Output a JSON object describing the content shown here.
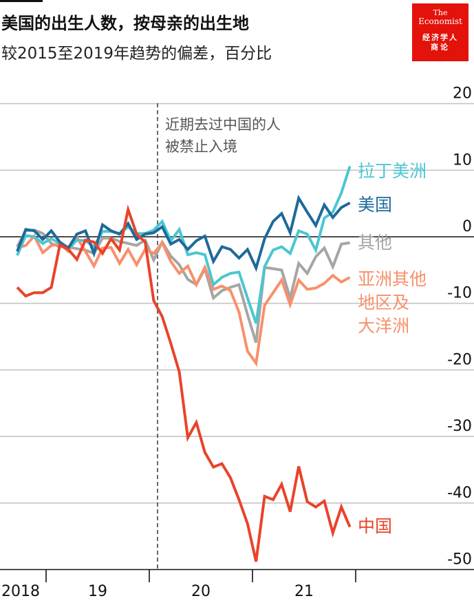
{
  "header": {
    "title": "美国的出生人数，按母亲的出生地",
    "subtitle": "较2015至2019年趋势的偏差，百分比"
  },
  "logo": {
    "line1": "The",
    "line2": "Economist",
    "line3": "经济学人",
    "line4": "商论",
    "color": "#e3120b"
  },
  "chart_data": {
    "type": "line",
    "title": "美国的出生人数，按母亲的出生地",
    "subtitle": "较2015至2019年趋势的偏差，百分比",
    "ylim": [
      -50,
      20
    ],
    "yticks": [
      "20",
      "10",
      "0",
      "-10",
      "-20",
      "-30",
      "-40",
      "-50"
    ],
    "ytick_values": [
      20,
      10,
      0,
      -10,
      -20,
      -30,
      -40,
      -50
    ],
    "xtick_labels": [
      "2018",
      "19",
      "20",
      "21"
    ],
    "grid": true,
    "annotation": {
      "line1": "近期去过中国的人",
      "line2": "被禁止入境",
      "at": "2020-01"
    },
    "x": [
      "2018-09",
      "2018-10",
      "2018-11",
      "2018-12",
      "2019-01",
      "2019-02",
      "2019-03",
      "2019-04",
      "2019-05",
      "2019-06",
      "2019-07",
      "2019-08",
      "2019-09",
      "2019-10",
      "2019-11",
      "2019-12",
      "2020-01",
      "2020-02",
      "2020-03",
      "2020-04",
      "2020-05",
      "2020-06",
      "2020-07",
      "2020-08",
      "2020-09",
      "2020-10",
      "2020-11",
      "2020-12",
      "2021-01",
      "2021-02",
      "2021-03",
      "2021-04",
      "2021-05",
      "2021-06",
      "2021-07",
      "2021-08",
      "2021-09",
      "2021-10",
      "2021-11",
      "2021-12"
    ],
    "series": [
      {
        "name": "其他",
        "color": "#a5a5a2",
        "values": [
          -1.5,
          0.9,
          1.0,
          0.5,
          -1.0,
          -1.5,
          -1.5,
          -1.8,
          -2.0,
          -2.5,
          -0.2,
          -0.2,
          -0.7,
          -1.0,
          -1.3,
          -0.5,
          -3.5,
          -0.8,
          -2.9,
          -4.2,
          -6.4,
          -7.2,
          -4.8,
          -9.2,
          -8.1,
          -7.6,
          -7.2,
          -11.7,
          -15.9,
          -4.6,
          -4.8,
          -5.0,
          -9.2,
          -4.0,
          -5.5,
          -3.0,
          -1.7,
          -4.5,
          -1.1,
          -0.9
        ]
      },
      {
        "name": "亚洲其他地区及大洋洲",
        "label_lines": [
          "亚洲其他",
          "地区及",
          "大洋洲"
        ],
        "color": "#f8906c",
        "values": [
          -1.7,
          -1.3,
          0.1,
          -2.4,
          -1.3,
          -1.1,
          -2.2,
          -0.1,
          -2.2,
          -4.4,
          -1.7,
          -1.6,
          -4.0,
          -1.9,
          -4.2,
          -1.9,
          -2.5,
          -0.9,
          -3.7,
          -5.5,
          -4.4,
          -7.2,
          -4.6,
          -7.9,
          -7.4,
          -8.1,
          -11.3,
          -17.2,
          -19.0,
          -10.3,
          -8.4,
          -6.5,
          -10.2,
          -6.5,
          -7.9,
          -7.7,
          -7.0,
          -5.8,
          -6.8,
          -6.1
        ]
      },
      {
        "name": "拉丁美洲",
        "color": "#4bc6d2",
        "values": [
          -2.8,
          0.2,
          0.0,
          -1.0,
          -0.3,
          -1.0,
          -1.8,
          -0.5,
          -0.6,
          -1.5,
          0.8,
          0.8,
          0.5,
          1.5,
          0.5,
          0.5,
          1.0,
          2.3,
          -0.6,
          1.1,
          -2.7,
          -2.4,
          -2.7,
          -7.2,
          -6.1,
          -5.5,
          -5.3,
          -9.2,
          -13.0,
          -4.5,
          -2.0,
          -1.5,
          -2.5,
          0.9,
          0.4,
          -2.0,
          2.8,
          3.7,
          6.6,
          10.6
        ]
      },
      {
        "name": "美国",
        "color": "#1d6a9b",
        "values": [
          -2.2,
          1.1,
          0.9,
          -0.4,
          0.9,
          -0.8,
          -1.7,
          0.4,
          0.9,
          -2.5,
          1.8,
          0.9,
          0.4,
          2.0,
          -0.4,
          0.4,
          0.6,
          1.5,
          -1.1,
          -0.4,
          -1.9,
          -0.6,
          0.1,
          -3.7,
          -1.5,
          -1.9,
          -3.2,
          -1.9,
          -4.7,
          -0.3,
          2.3,
          3.5,
          0.6,
          5.8,
          3.7,
          1.7,
          4.8,
          2.9,
          4.4,
          5.1
        ]
      },
      {
        "name": "中国",
        "color": "#e8442a",
        "values": [
          -7.6,
          -8.9,
          -8.4,
          -8.4,
          -7.6,
          -1.2,
          -1.9,
          -3.4,
          -0.5,
          -0.8,
          -2.5,
          -0.3,
          -2.0,
          4.1,
          0.4,
          -0.8,
          -9.6,
          -12.0,
          -16.0,
          -20.3,
          -30.2,
          -27.9,
          -32.4,
          -34.6,
          -34.1,
          -36.2,
          -39.5,
          -43.1,
          -48.8,
          -39.0,
          -39.5,
          -37.2,
          -41.3,
          -34.5,
          -39.8,
          -40.6,
          -39.7,
          -44.5,
          -40.6,
          -43.6
        ]
      }
    ]
  }
}
